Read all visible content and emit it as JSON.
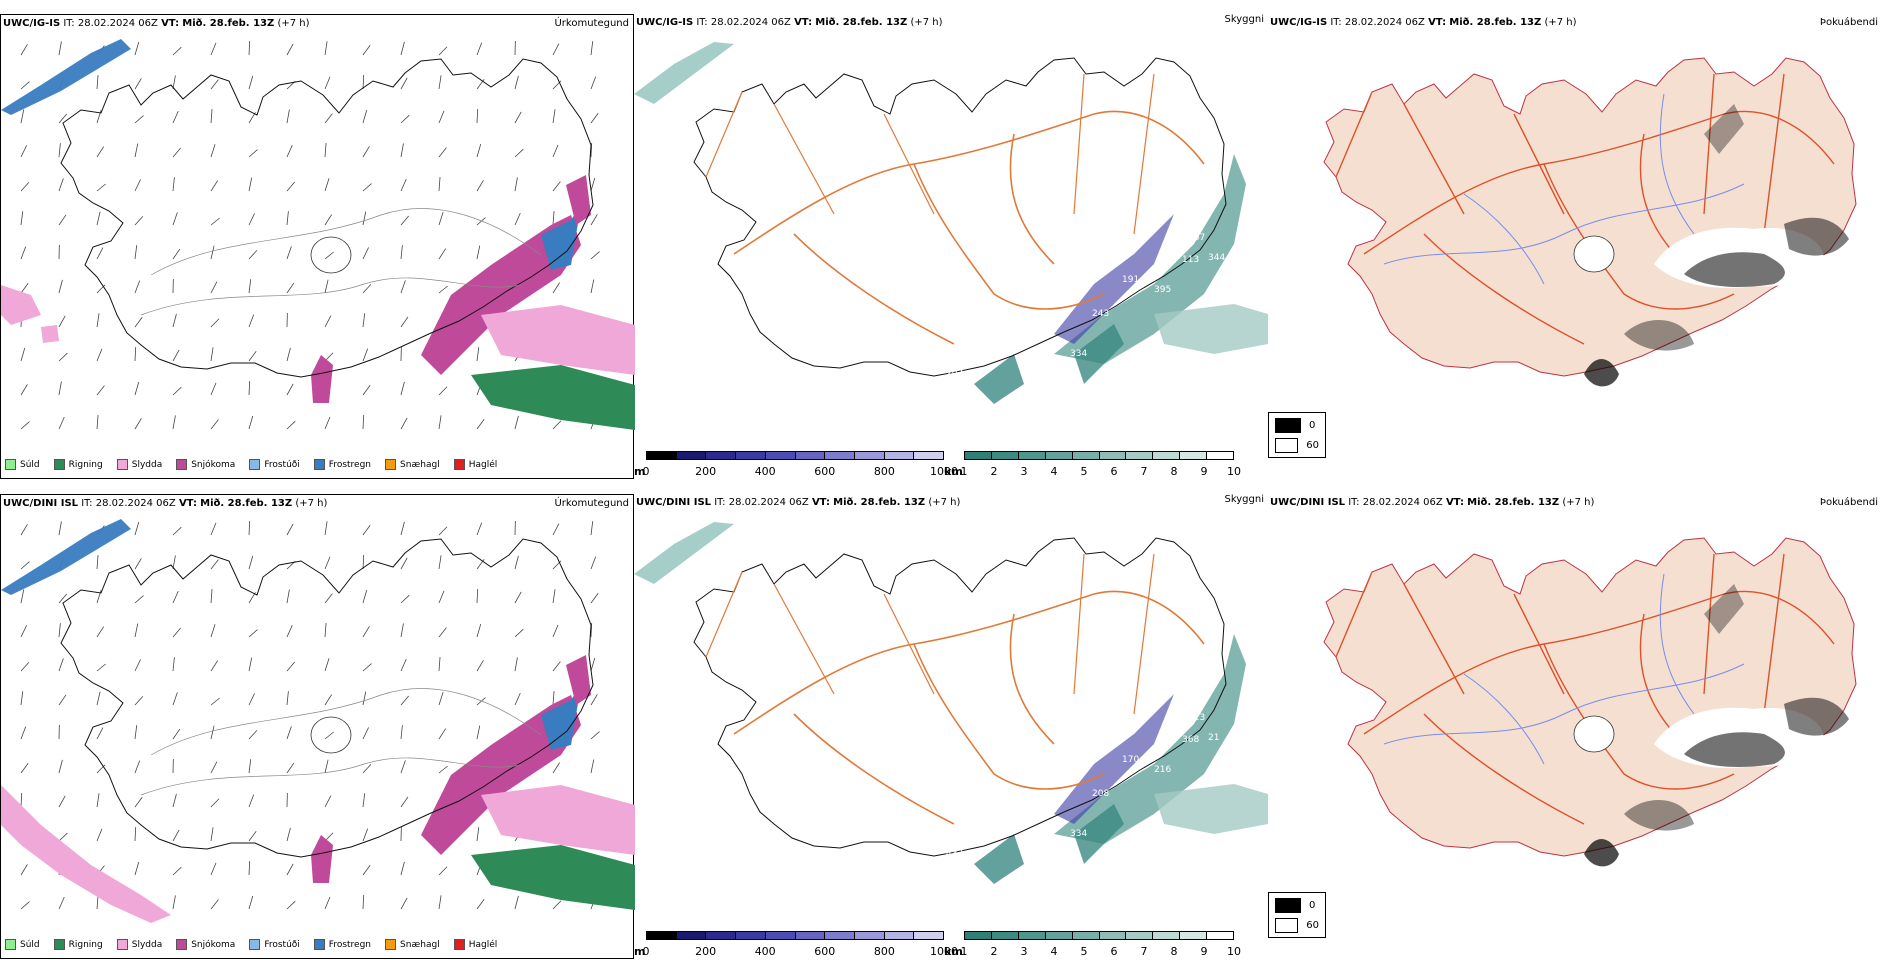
{
  "rows": [
    {
      "model": "UWC/IG-IS",
      "it_label": "IT:",
      "it_value": "28.02.2024 06Z",
      "vt_label": "VT:",
      "vt_value": "Mið. 28.feb. 13Z",
      "lead": "(+7 h)",
      "panels": [
        "Úrkomutegund",
        "Skyggni",
        "Þokuábendi"
      ],
      "visibility_labels": [
        "207",
        "157",
        "334",
        "191",
        "243",
        "113",
        "395",
        "267",
        "344"
      ]
    },
    {
      "model": "UWC/DINI ISL",
      "it_label": "IT:",
      "it_value": "28.02.2024 06Z",
      "vt_label": "VT:",
      "vt_value": "Mið. 28.feb. 13Z",
      "lead": "(+7 h)",
      "panels": [
        "Úrkomutegund",
        "Skyggni",
        "Þokuábendi"
      ],
      "visibility_labels": [
        "432",
        "184",
        "334",
        "170",
        "208",
        "368",
        "216",
        "323",
        "21"
      ]
    }
  ],
  "precip_legend": [
    {
      "label": "Súld",
      "color": "#90ee90"
    },
    {
      "label": "Rigning",
      "color": "#2e8b57"
    },
    {
      "label": "Slydda",
      "color": "#f0a8d8"
    },
    {
      "label": "Snjókoma",
      "color": "#c04a9a"
    },
    {
      "label": "Frostúði",
      "color": "#87b8e8"
    },
    {
      "label": "Frostregn",
      "color": "#3a7cc0"
    },
    {
      "label": "Snæhagl",
      "color": "#f39c12"
    },
    {
      "label": "Haglél",
      "color": "#e02020"
    }
  ],
  "height_bar": {
    "unit": "m",
    "ticks": [
      "0",
      "200",
      "400",
      "600",
      "800",
      "1000"
    ],
    "colors": [
      "#000000",
      "#1a1a6e",
      "#2b2b8f",
      "#3a3aa3",
      "#4c4cb5",
      "#6464c2",
      "#7d7dcf",
      "#9898da",
      "#b3b3e4",
      "#d0d0ee"
    ]
  },
  "vis_bar": {
    "unit": "km",
    "ticks": [
      "1",
      "2",
      "3",
      "4",
      "5",
      "6",
      "7",
      "8",
      "9",
      "10"
    ],
    "colors": [
      "#2d7f78",
      "#3b8a83",
      "#4e978f",
      "#62a39b",
      "#77b0a8",
      "#8dbdb6",
      "#a4cbc4",
      "#bcd9d3",
      "#d5e8e4",
      "#ffffff"
    ]
  },
  "fog_legend": [
    {
      "label": "0",
      "color": "#000000"
    },
    {
      "label": "60",
      "color": "#ffffff"
    }
  ],
  "colors": {
    "land_fill": "#f5dfd0",
    "roads": "#e07a3a",
    "roads_red": "#e0502a",
    "rivers": "#7a8de8",
    "coast": "#111111"
  }
}
